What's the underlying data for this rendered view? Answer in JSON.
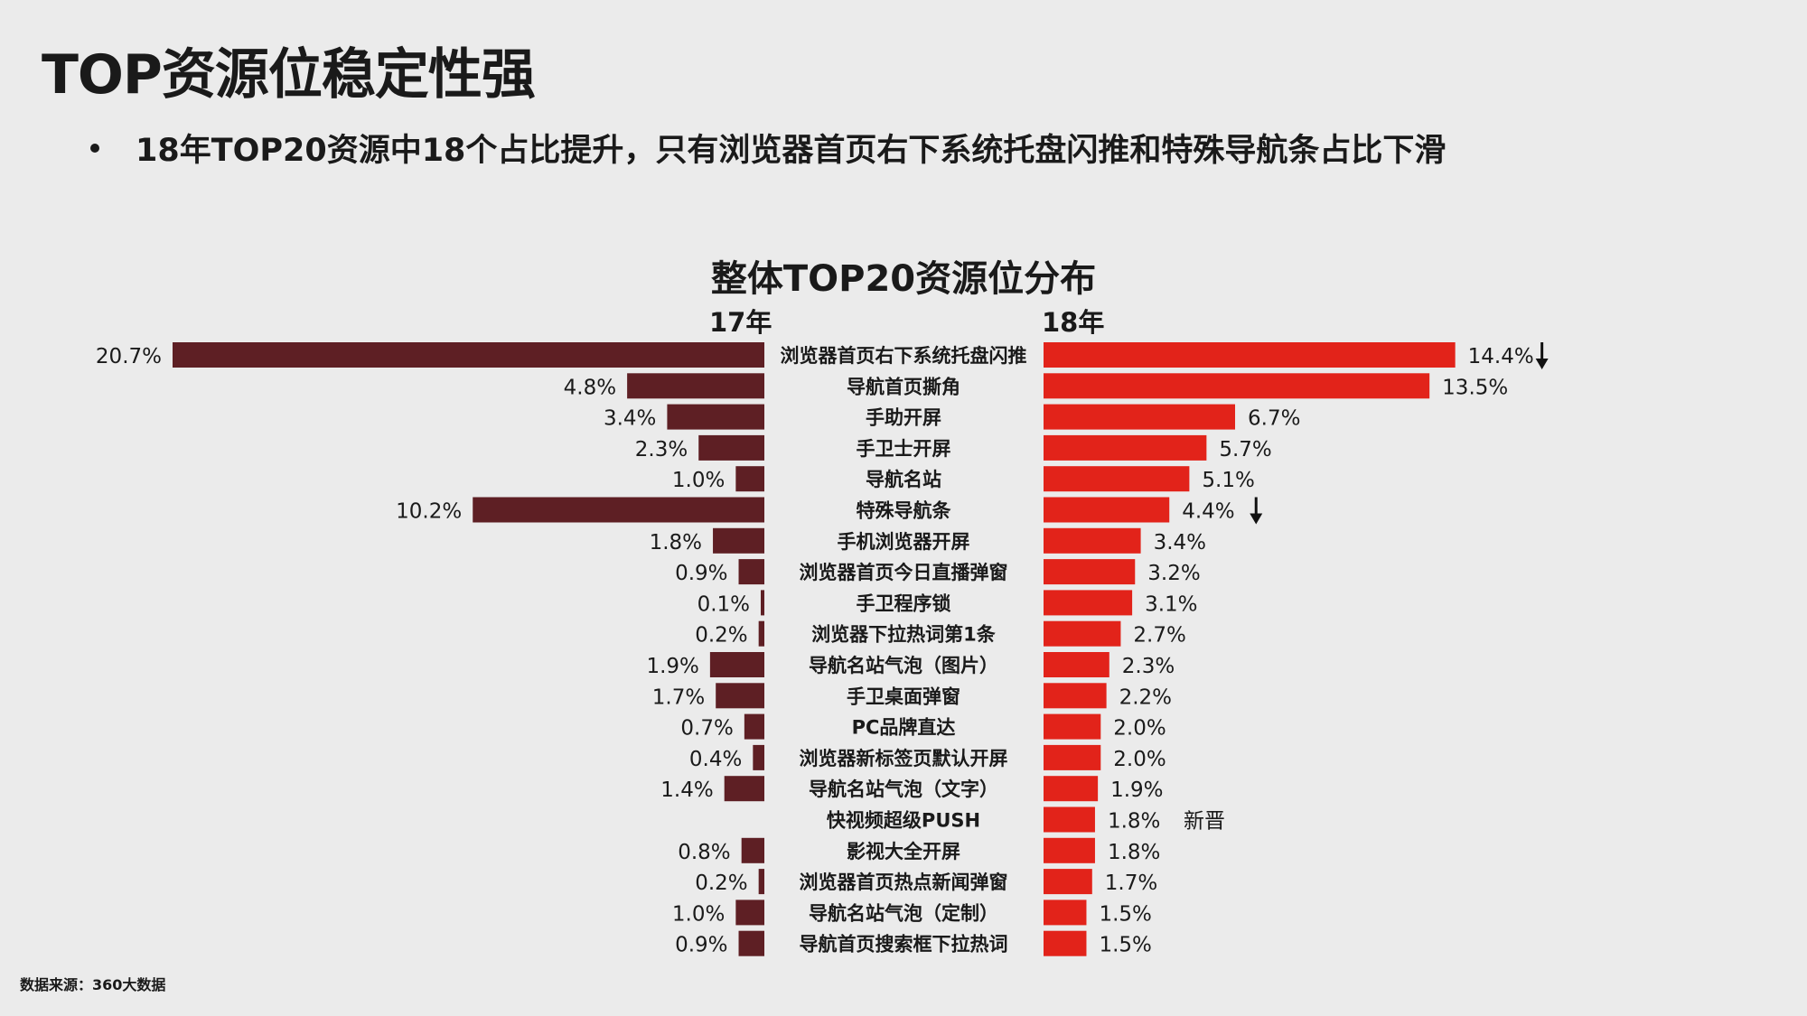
{
  "page": {
    "title": "TOP资源位稳定性强",
    "bullet": "18年TOP20资源中18个占比提升，只有浏览器首页右下系统托盘闪推和特殊导航条占比下滑",
    "source": "数据来源：360大数据"
  },
  "chart_data": {
    "type": "bar",
    "title": "整体TOP20资源位分布",
    "layout": "butterfly",
    "series": [
      {
        "name": "17年",
        "color": "#5e1f24"
      },
      {
        "name": "18年",
        "color": "#e2231a"
      }
    ],
    "categories": [
      "浏览器首页右下系统托盘闪推",
      "导航首页撕角",
      "手助开屏",
      "手卫士开屏",
      "导航名站",
      "特殊导航条",
      "手机浏览器开屏",
      "浏览器首页今日直播弹窗",
      "手卫程序锁",
      "浏览器下拉热词第1条",
      "导航名站气泡（图片）",
      "手卫桌面弹窗",
      "PC品牌直达",
      "浏览器新标签页默认开屏",
      "导航名站气泡（文字）",
      "快视频超级PUSH",
      "影视大全开屏",
      "浏览器首页热点新闻弹窗",
      "导航名站气泡（定制）",
      "导航首页搜索框下拉热词"
    ],
    "values_17": [
      20.7,
      4.8,
      3.4,
      2.3,
      1.0,
      10.2,
      1.8,
      0.9,
      0.1,
      0.2,
      1.9,
      1.7,
      0.7,
      0.4,
      1.4,
      null,
      0.8,
      0.2,
      1.0,
      0.9
    ],
    "labels_17": [
      "20.7%",
      "4.8%",
      "3.4%",
      "2.3%",
      "1.0%",
      "10.2%",
      "1.8%",
      "0.9%",
      "0.1%",
      "0.2%",
      "1.9%",
      "1.7%",
      "0.7%",
      "0.4%",
      "1.4%",
      "",
      "0.8%",
      "0.2%",
      "1.0%",
      "0.9%"
    ],
    "values_18": [
      14.4,
      13.5,
      6.7,
      5.7,
      5.1,
      4.4,
      3.4,
      3.2,
      3.1,
      2.7,
      2.3,
      2.2,
      2.0,
      2.0,
      1.9,
      1.8,
      1.8,
      1.7,
      1.5,
      1.5
    ],
    "labels_18": [
      "14.4%",
      "13.5%",
      "6.7%",
      "5.7%",
      "5.1%",
      "4.4%",
      "3.4%",
      "3.2%",
      "3.1%",
      "2.7%",
      "2.3%",
      "2.2%",
      "2.0%",
      "2.0%",
      "1.9%",
      "1.8%",
      "1.8%",
      "1.7%",
      "1.5%",
      "1.5%"
    ],
    "annotations_18": [
      "down-arrow",
      "",
      "",
      "",
      "",
      "down-arrow",
      "",
      "",
      "",
      "",
      "",
      "",
      "",
      "",
      "",
      "新晋",
      "",
      "",
      "",
      ""
    ],
    "xlim": [
      0,
      20.7
    ]
  }
}
